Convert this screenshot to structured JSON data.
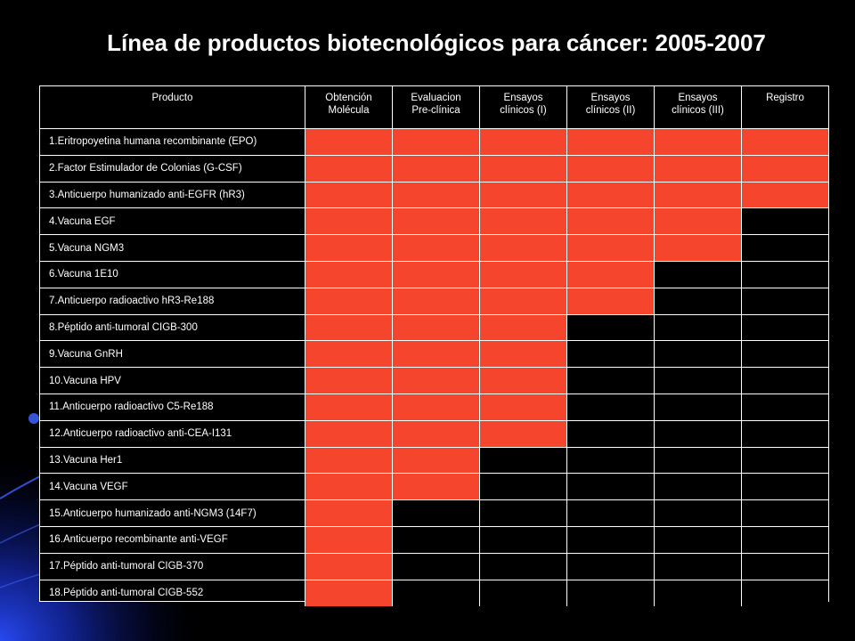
{
  "title": "Línea de productos biotecnológicos para cáncer: 2005-2007",
  "colors": {
    "background": "#000000",
    "completed": "#f5452d",
    "not_completed": "#000000",
    "grid_lines": "#ffffff",
    "decor_blue": "#1f3cff"
  },
  "table": {
    "headers": [
      "Producto",
      "Obtención\nMolécula",
      "Evaluacion\nPre-clínica",
      "Ensayos\nclínicos (I)",
      "Ensayos\nclínicos (II)",
      "Ensayos\nclínicos (III)",
      "Registro"
    ],
    "rows": [
      {
        "name": "1.Eritropoyetina humana recombinante (EPO)",
        "stages_completed": 6
      },
      {
        "name": "2.Factor Estimulador de Colonias (G-CSF)",
        "stages_completed": 6
      },
      {
        "name": "3.Anticuerpo humanizado  anti-EGFR (hR3)",
        "stages_completed": 6
      },
      {
        "name": "4.Vacuna EGF",
        "stages_completed": 5
      },
      {
        "name": "5.Vacuna NGM3",
        "stages_completed": 5
      },
      {
        "name": "6.Vacuna 1E10",
        "stages_completed": 4
      },
      {
        "name": "7.Anticuerpo radioactivo hR3-Re188",
        "stages_completed": 4
      },
      {
        "name": "8.Péptido anti-tumoral CIGB-300",
        "stages_completed": 3
      },
      {
        "name": "9.Vacuna GnRH",
        "stages_completed": 3
      },
      {
        "name": "10.Vacuna HPV",
        "stages_completed": 3
      },
      {
        "name": "11.Anticuerpo radioactivo C5-Re188",
        "stages_completed": 3
      },
      {
        "name": "12.Anticuerpo radioactivo anti-CEA-I131",
        "stages_completed": 3
      },
      {
        "name": "13.Vacuna Her1",
        "stages_completed": 2
      },
      {
        "name": "14.Vacuna  VEGF",
        "stages_completed": 2
      },
      {
        "name": "15.Anticuerpo humanizado anti-NGM3  (14F7)",
        "stages_completed": 1
      },
      {
        "name": "16.Anticuerpo recombinante anti-VEGF",
        "stages_completed": 1
      },
      {
        "name": "17.Péptido anti-tumoral CIGB-370",
        "stages_completed": 1
      },
      {
        "name": "18.Péptido anti-tumoral CIGB-552",
        "stages_completed": 1
      }
    ]
  }
}
